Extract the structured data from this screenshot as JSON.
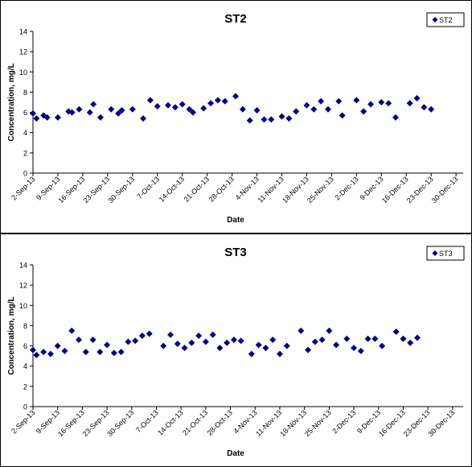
{
  "chart_data": [
    {
      "type": "scatter",
      "title": "ST2",
      "xlabel": "Date",
      "ylabel": "Concentration, mg/L",
      "ylim": [
        0,
        14
      ],
      "yticks": [
        0,
        2,
        4,
        6,
        8,
        10,
        12,
        14
      ],
      "xlim": [
        "2-Sep-13",
        "1-Jan-14"
      ],
      "xtick_labels": [
        "2-Sep-13",
        "9-Sep-13",
        "16-Sep-13",
        "23-Sep-13",
        "30-Sep-13",
        "7-Oct-13",
        "14-Oct-13",
        "21-Oct-13",
        "28-Oct-13",
        "4-Nov-13",
        "11-Nov-13",
        "18-Nov-13",
        "25-Nov-13",
        "2-Dec-13",
        "9-Dec-13",
        "16-Dec-13",
        "23-Dec-13",
        "30-Dec-13"
      ],
      "grid": false,
      "legend": "top-right",
      "marker_color": "#000080",
      "series": [
        {
          "name": "ST2",
          "points": [
            [
              "2-Sep-13",
              5.9
            ],
            [
              "3-Sep-13",
              5.4
            ],
            [
              "5-Sep-13",
              5.7
            ],
            [
              "6-Sep-13",
              5.5
            ],
            [
              "9-Sep-13",
              5.5
            ],
            [
              "12-Sep-13",
              6.1
            ],
            [
              "13-Sep-13",
              6.0
            ],
            [
              "15-Sep-13",
              6.3
            ],
            [
              "18-Sep-13",
              6.0
            ],
            [
              "19-Sep-13",
              6.8
            ],
            [
              "21-Sep-13",
              5.5
            ],
            [
              "24-Sep-13",
              6.3
            ],
            [
              "26-Sep-13",
              5.9
            ],
            [
              "27-Sep-13",
              6.2
            ],
            [
              "30-Sep-13",
              6.3
            ],
            [
              "3-Oct-13",
              5.4
            ],
            [
              "5-Oct-13",
              7.2
            ],
            [
              "7-Oct-13",
              6.6
            ],
            [
              "10-Oct-13",
              6.7
            ],
            [
              "12-Oct-13",
              6.5
            ],
            [
              "14-Oct-13",
              6.8
            ],
            [
              "16-Oct-13",
              6.3
            ],
            [
              "17-Oct-13",
              6.0
            ],
            [
              "20-Oct-13",
              6.4
            ],
            [
              "22-Oct-13",
              6.9
            ],
            [
              "24-Oct-13",
              7.2
            ],
            [
              "26-Oct-13",
              7.1
            ],
            [
              "29-Oct-13",
              7.6
            ],
            [
              "31-Oct-13",
              6.3
            ],
            [
              "2-Nov-13",
              5.2
            ],
            [
              "4-Nov-13",
              6.2
            ],
            [
              "6-Nov-13",
              5.3
            ],
            [
              "8-Nov-13",
              5.3
            ],
            [
              "11-Nov-13",
              5.6
            ],
            [
              "13-Nov-13",
              5.4
            ],
            [
              "15-Nov-13",
              6.1
            ],
            [
              "18-Nov-13",
              6.7
            ],
            [
              "20-Nov-13",
              6.3
            ],
            [
              "22-Nov-13",
              7.1
            ],
            [
              "24-Nov-13",
              6.3
            ],
            [
              "27-Nov-13",
              7.1
            ],
            [
              "28-Nov-13",
              5.7
            ],
            [
              "2-Dec-13",
              7.2
            ],
            [
              "4-Dec-13",
              6.1
            ],
            [
              "6-Dec-13",
              6.8
            ],
            [
              "9-Dec-13",
              7.0
            ],
            [
              "11-Dec-13",
              6.9
            ],
            [
              "13-Dec-13",
              5.5
            ],
            [
              "17-Dec-13",
              6.9
            ],
            [
              "19-Dec-13",
              7.4
            ],
            [
              "21-Dec-13",
              6.5
            ],
            [
              "23-Dec-13",
              6.3
            ]
          ]
        }
      ]
    },
    {
      "type": "scatter",
      "title": "ST3",
      "xlabel": "Date",
      "ylabel": "Concentration, mg/L",
      "ylim": [
        0,
        14
      ],
      "yticks": [
        0,
        2,
        4,
        6,
        8,
        10,
        12,
        14
      ],
      "xlim": [
        "2-Sep-13",
        "2-Jan-14"
      ],
      "xtick_labels": [
        "2-Sep-13",
        "9-Sep-13",
        "16-Sep-13",
        "23-Sep-13",
        "30-Sep-13",
        "7-Oct-13",
        "14-Oct-13",
        "21-Oct-13",
        "28-Oct-13",
        "4-Nov-13",
        "11-Nov-13",
        "18-Nov-13",
        "25-Nov-13",
        "2-Dec-13",
        "9-Dec-13",
        "16-Dec-13",
        "23-Dec-13",
        "30-Dec-13"
      ],
      "grid": false,
      "legend": "top-right",
      "marker_color": "#000080",
      "series": [
        {
          "name": "ST3",
          "points": [
            [
              "2-Sep-13",
              5.6
            ],
            [
              "3-Sep-13",
              5.1
            ],
            [
              "5-Sep-13",
              5.4
            ],
            [
              "7-Sep-13",
              5.2
            ],
            [
              "9-Sep-13",
              6.0
            ],
            [
              "11-Sep-13",
              5.5
            ],
            [
              "13-Sep-13",
              7.5
            ],
            [
              "15-Sep-13",
              6.6
            ],
            [
              "17-Sep-13",
              5.4
            ],
            [
              "19-Sep-13",
              6.6
            ],
            [
              "21-Sep-13",
              5.4
            ],
            [
              "23-Sep-13",
              6.1
            ],
            [
              "25-Sep-13",
              5.3
            ],
            [
              "27-Sep-13",
              5.4
            ],
            [
              "29-Sep-13",
              6.4
            ],
            [
              "1-Oct-13",
              6.5
            ],
            [
              "3-Oct-13",
              7.0
            ],
            [
              "5-Oct-13",
              7.2
            ],
            [
              "9-Oct-13",
              6.0
            ],
            [
              "11-Oct-13",
              7.1
            ],
            [
              "13-Oct-13",
              6.2
            ],
            [
              "15-Oct-13",
              5.8
            ],
            [
              "17-Oct-13",
              6.3
            ],
            [
              "19-Oct-13",
              7.0
            ],
            [
              "21-Oct-13",
              6.4
            ],
            [
              "23-Oct-13",
              7.1
            ],
            [
              "25-Oct-13",
              5.8
            ],
            [
              "27-Oct-13",
              6.3
            ],
            [
              "29-Oct-13",
              6.6
            ],
            [
              "31-Oct-13",
              6.5
            ],
            [
              "3-Nov-13",
              5.2
            ],
            [
              "5-Nov-13",
              6.1
            ],
            [
              "7-Nov-13",
              5.8
            ],
            [
              "9-Nov-13",
              6.6
            ],
            [
              "11-Nov-13",
              5.2
            ],
            [
              "13-Nov-13",
              6.0
            ],
            [
              "17-Nov-13",
              7.5
            ],
            [
              "19-Nov-13",
              5.6
            ],
            [
              "21-Nov-13",
              6.4
            ],
            [
              "23-Nov-13",
              6.6
            ],
            [
              "25-Nov-13",
              7.5
            ],
            [
              "27-Nov-13",
              6.1
            ],
            [
              "30-Nov-13",
              6.7
            ],
            [
              "2-Dec-13",
              5.8
            ],
            [
              "4-Dec-13",
              5.5
            ],
            [
              "6-Dec-13",
              6.7
            ],
            [
              "8-Dec-13",
              6.7
            ],
            [
              "10-Dec-13",
              6.0
            ],
            [
              "14-Dec-13",
              7.4
            ],
            [
              "16-Dec-13",
              6.7
            ],
            [
              "18-Dec-13",
              6.3
            ],
            [
              "20-Dec-13",
              6.8
            ]
          ]
        }
      ]
    }
  ]
}
